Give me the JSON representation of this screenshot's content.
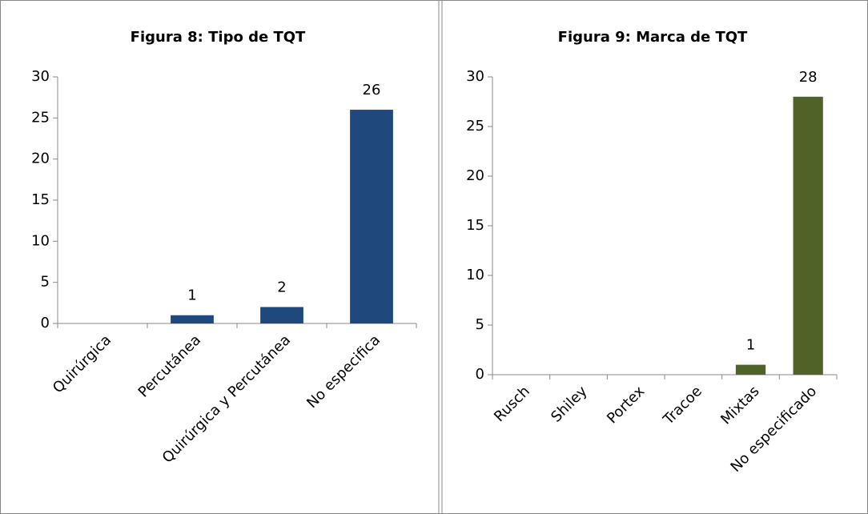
{
  "chart_data": [
    {
      "type": "bar",
      "title": "Figura 8: Tipo de TQT",
      "categories": [
        "Quirúrgica",
        "Percutánea",
        "Quirúrgica y Percutánea",
        "No especifica"
      ],
      "values": [
        0,
        1,
        2,
        26
      ],
      "color": "#1f497d",
      "ylim": [
        0,
        30
      ],
      "yticks": [
        0,
        5,
        10,
        15,
        20,
        25,
        30
      ]
    },
    {
      "type": "bar",
      "title": "Figura 9: Marca de TQT",
      "categories": [
        "Rusch",
        "Shiley",
        "Portex",
        "Tracoe",
        "Mixtas",
        "No especificado"
      ],
      "values": [
        0,
        0,
        0,
        0,
        1,
        28
      ],
      "color": "#4f6228",
      "ylim": [
        0,
        30
      ],
      "yticks": [
        0,
        5,
        10,
        15,
        20,
        25,
        30
      ]
    }
  ]
}
